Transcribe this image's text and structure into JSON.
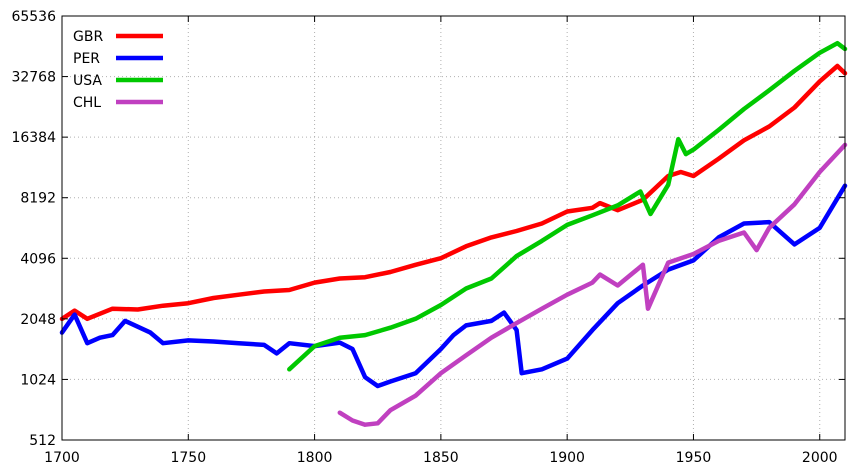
{
  "chart_data": {
    "type": "line",
    "title": "",
    "xlabel": "",
    "ylabel": "",
    "xlim": [
      1700,
      2010
    ],
    "ylim": [
      512,
      65536
    ],
    "yscale": "log2",
    "grid": true,
    "legend_position": "top-left",
    "x_ticks": [
      1700,
      1750,
      1800,
      1850,
      1900,
      1950,
      2000
    ],
    "y_ticks": [
      512,
      1024,
      2048,
      4096,
      8192,
      16384,
      32768,
      65536
    ],
    "series": [
      {
        "name": "GBR",
        "color": "#ff0000",
        "points": [
          [
            1700,
            2048
          ],
          [
            1705,
            2250
          ],
          [
            1710,
            2050
          ],
          [
            1720,
            2300
          ],
          [
            1730,
            2280
          ],
          [
            1740,
            2380
          ],
          [
            1750,
            2450
          ],
          [
            1760,
            2600
          ],
          [
            1770,
            2700
          ],
          [
            1780,
            2800
          ],
          [
            1790,
            2850
          ],
          [
            1800,
            3100
          ],
          [
            1810,
            3250
          ],
          [
            1820,
            3300
          ],
          [
            1830,
            3500
          ],
          [
            1840,
            3800
          ],
          [
            1850,
            4100
          ],
          [
            1860,
            4700
          ],
          [
            1870,
            5200
          ],
          [
            1880,
            5600
          ],
          [
            1890,
            6100
          ],
          [
            1900,
            7000
          ],
          [
            1910,
            7300
          ],
          [
            1913,
            7700
          ],
          [
            1920,
            7100
          ],
          [
            1930,
            8000
          ],
          [
            1940,
            10500
          ],
          [
            1945,
            11000
          ],
          [
            1950,
            10500
          ],
          [
            1960,
            12800
          ],
          [
            1970,
            15800
          ],
          [
            1980,
            18500
          ],
          [
            1990,
            23000
          ],
          [
            2000,
            31000
          ],
          [
            2007,
            37000
          ],
          [
            2010,
            34000
          ]
        ]
      },
      {
        "name": "PER",
        "color": "#0000ff",
        "points": [
          [
            1700,
            1750
          ],
          [
            1705,
            2150
          ],
          [
            1710,
            1550
          ],
          [
            1715,
            1650
          ],
          [
            1720,
            1700
          ],
          [
            1725,
            2000
          ],
          [
            1735,
            1750
          ],
          [
            1740,
            1550
          ],
          [
            1750,
            1600
          ],
          [
            1760,
            1580
          ],
          [
            1770,
            1550
          ],
          [
            1780,
            1520
          ],
          [
            1785,
            1380
          ],
          [
            1790,
            1550
          ],
          [
            1800,
            1500
          ],
          [
            1810,
            1560
          ],
          [
            1815,
            1450
          ],
          [
            1820,
            1050
          ],
          [
            1825,
            950
          ],
          [
            1830,
            1000
          ],
          [
            1840,
            1100
          ],
          [
            1850,
            1450
          ],
          [
            1855,
            1700
          ],
          [
            1860,
            1900
          ],
          [
            1870,
            2000
          ],
          [
            1875,
            2200
          ],
          [
            1880,
            1800
          ],
          [
            1882,
            1100
          ],
          [
            1890,
            1150
          ],
          [
            1900,
            1300
          ],
          [
            1910,
            1800
          ],
          [
            1920,
            2450
          ],
          [
            1930,
            3000
          ],
          [
            1940,
            3600
          ],
          [
            1950,
            4000
          ],
          [
            1960,
            5200
          ],
          [
            1970,
            6100
          ],
          [
            1980,
            6200
          ],
          [
            1990,
            4800
          ],
          [
            2000,
            5800
          ],
          [
            2010,
            9400
          ]
        ]
      },
      {
        "name": "USA",
        "color": "#00c800",
        "points": [
          [
            1790,
            1150
          ],
          [
            1800,
            1500
          ],
          [
            1810,
            1650
          ],
          [
            1820,
            1700
          ],
          [
            1830,
            1850
          ],
          [
            1840,
            2050
          ],
          [
            1850,
            2400
          ],
          [
            1860,
            2900
          ],
          [
            1870,
            3250
          ],
          [
            1880,
            4200
          ],
          [
            1890,
            5000
          ],
          [
            1900,
            6000
          ],
          [
            1910,
            6700
          ],
          [
            1920,
            7500
          ],
          [
            1929,
            8800
          ],
          [
            1933,
            6800
          ],
          [
            1940,
            9500
          ],
          [
            1944,
            16000
          ],
          [
            1947,
            13500
          ],
          [
            1950,
            14200
          ],
          [
            1960,
            17800
          ],
          [
            1970,
            22600
          ],
          [
            1980,
            28000
          ],
          [
            1990,
            35000
          ],
          [
            2000,
            43000
          ],
          [
            2007,
            48000
          ],
          [
            2010,
            45000
          ]
        ]
      },
      {
        "name": "CHL",
        "color": "#c040c0",
        "points": [
          [
            1810,
            700
          ],
          [
            1815,
            640
          ],
          [
            1820,
            610
          ],
          [
            1825,
            620
          ],
          [
            1830,
            720
          ],
          [
            1840,
            850
          ],
          [
            1850,
            1100
          ],
          [
            1860,
            1350
          ],
          [
            1870,
            1650
          ],
          [
            1880,
            1950
          ],
          [
            1890,
            2300
          ],
          [
            1900,
            2700
          ],
          [
            1910,
            3100
          ],
          [
            1913,
            3400
          ],
          [
            1920,
            3000
          ],
          [
            1930,
            3800
          ],
          [
            1932,
            2300
          ],
          [
            1940,
            3900
          ],
          [
            1950,
            4300
          ],
          [
            1960,
            5000
          ],
          [
            1970,
            5500
          ],
          [
            1975,
            4500
          ],
          [
            1980,
            5800
          ],
          [
            1990,
            7600
          ],
          [
            2000,
            11000
          ],
          [
            2010,
            15000
          ]
        ]
      }
    ]
  }
}
